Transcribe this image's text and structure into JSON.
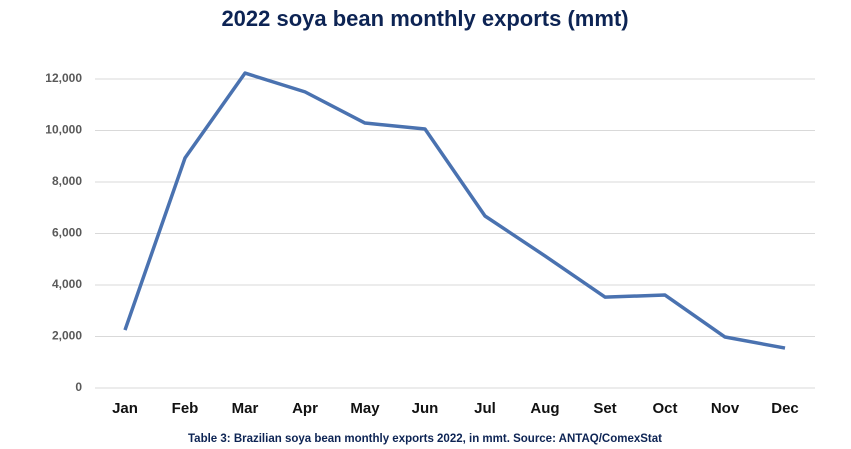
{
  "chart_data": {
    "type": "line",
    "title": "2022 soya bean monthly exports (mmt)",
    "caption": "Table 3: Brazilian soya bean monthly exports 2022, in mmt. Source: ANTAQ/ComexStat",
    "categories": [
      "Jan",
      "Feb",
      "Mar",
      "Apr",
      "May",
      "Jun",
      "Jul",
      "Aug",
      "Set",
      "Oct",
      "Nov",
      "Dec"
    ],
    "series": [
      {
        "name": "Exports",
        "color": "#4a72b0",
        "values": [
          2250,
          8930,
          12230,
          11500,
          10290,
          10060,
          6680,
          5130,
          3530,
          3610,
          1980,
          1550
        ]
      }
    ],
    "ylim": [
      0,
      12000
    ],
    "yticks": [
      0,
      {
        "value": 2000,
        "label": "2,000"
      },
      {
        "value": 4000,
        "label": "4,000"
      },
      {
        "value": 6000,
        "label": "6,000"
      },
      {
        "value": 8000,
        "label": "8,000"
      },
      {
        "value": 10000,
        "label": "10,000"
      },
      {
        "value": 12000,
        "label": "12,000"
      }
    ],
    "grid": true
  }
}
